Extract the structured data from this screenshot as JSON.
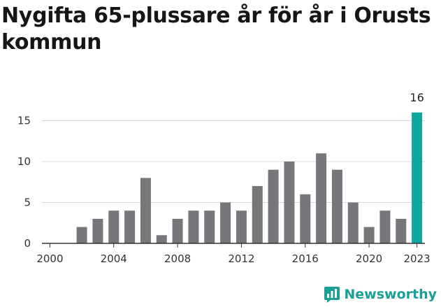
{
  "title": "Nygifta 65-plussare år för år i Orusts kommun",
  "brand": {
    "name": "Newsworthy",
    "icon": "newsworthy-logo-icon"
  },
  "colors": {
    "bar": "#77767b",
    "highlight": "#0fa89e",
    "grid": "#d9d9d9",
    "axis": "#333333",
    "brand": "#1a9f96"
  },
  "chart_data": {
    "type": "bar",
    "title": "Nygifta 65-plussare år för år i Orusts kommun",
    "xlabel": "",
    "ylabel": "",
    "categories": [
      2000,
      2001,
      2002,
      2003,
      2004,
      2005,
      2006,
      2007,
      2008,
      2009,
      2010,
      2011,
      2012,
      2013,
      2014,
      2015,
      2016,
      2017,
      2018,
      2019,
      2020,
      2021,
      2022,
      2023
    ],
    "values": [
      0,
      0,
      2,
      3,
      4,
      4,
      8,
      1,
      3,
      4,
      4,
      5,
      4,
      7,
      9,
      10,
      6,
      11,
      9,
      5,
      2,
      4,
      3,
      16
    ],
    "highlight_index": 23,
    "highlight_label": "16",
    "x_tick_labels": [
      "2000",
      "2004",
      "2008",
      "2012",
      "2016",
      "2020",
      "2023"
    ],
    "y_ticks": [
      0,
      5,
      10,
      15
    ],
    "ylim": [
      0,
      16
    ],
    "grid": true,
    "legend": "none"
  }
}
